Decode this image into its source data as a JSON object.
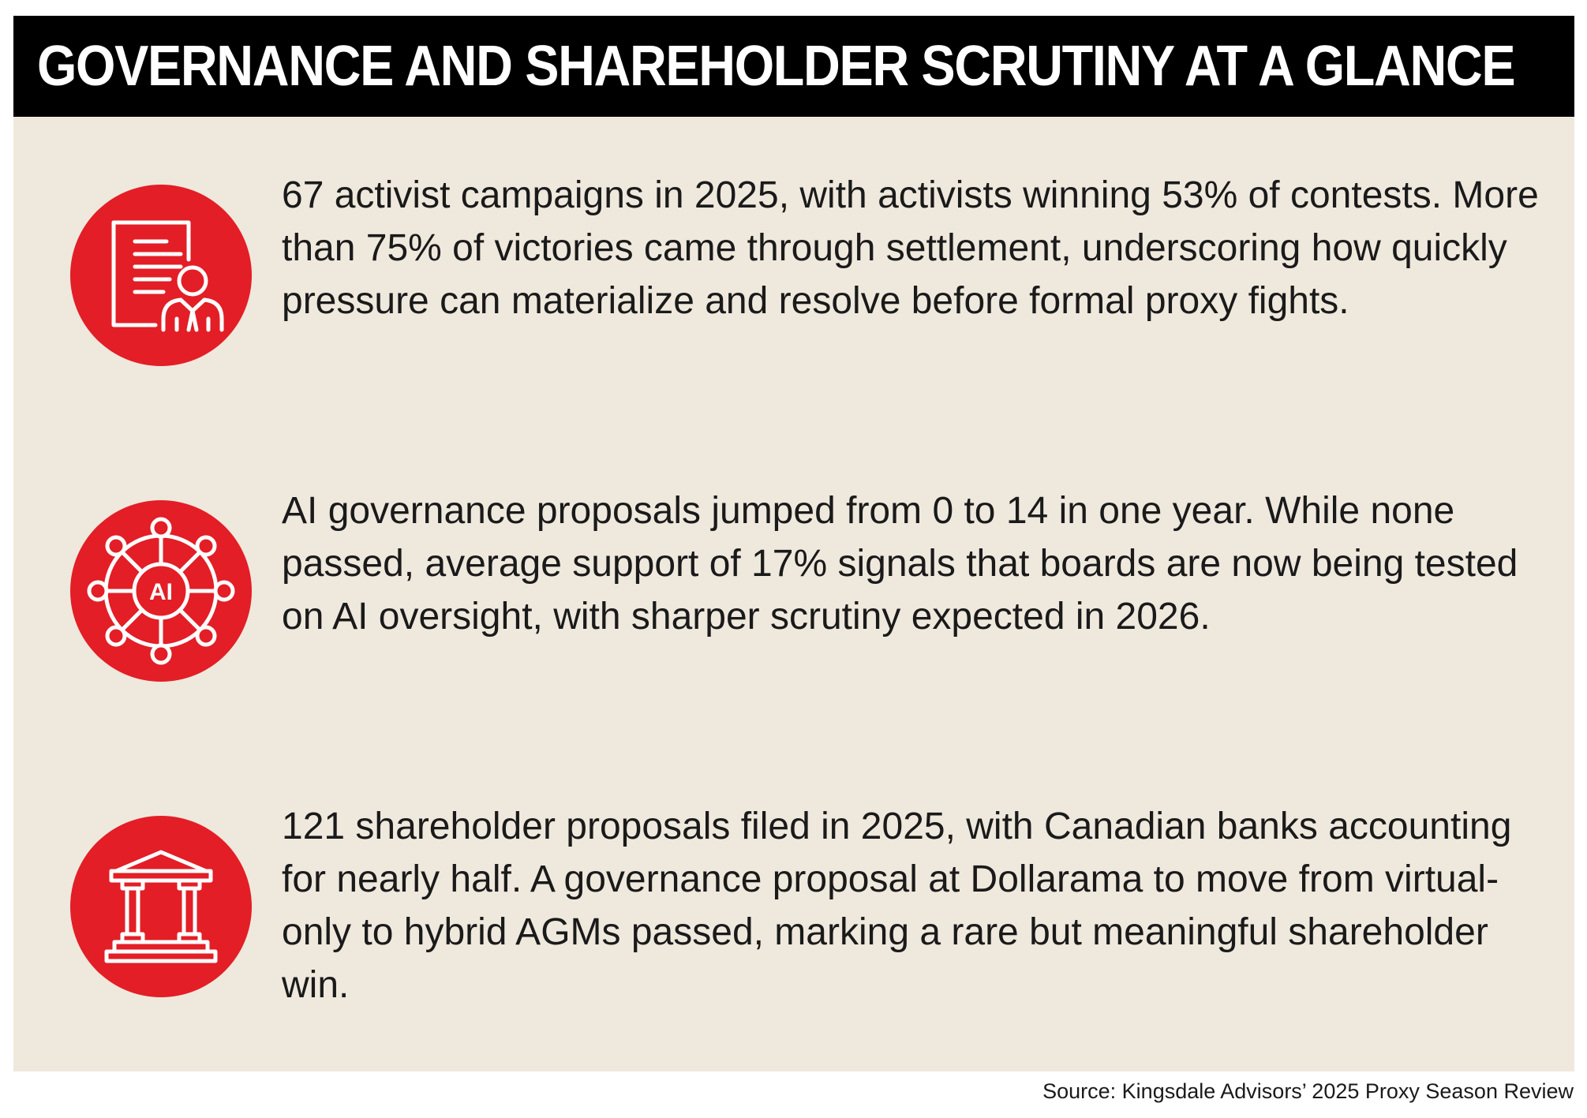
{
  "header": {
    "title": "GOVERNANCE AND SHAREHOLDER SCRUTINY AT A GLANCE"
  },
  "colors": {
    "header_bg": "#000000",
    "panel_bg": "#efe8dd",
    "icon_red": "#e31e26",
    "text": "#1a1a1a"
  },
  "items": [
    {
      "icon": "document-person-icon",
      "text": "67 activist campaigns in 2025, with activists winning 53% of contests. More than 75% of victories came through settlement, underscoring how quickly pressure can materialize and resolve before formal proxy fights."
    },
    {
      "icon": "ai-network-icon",
      "icon_label": "AI",
      "text": "AI governance proposals jumped from 0 to 14 in one year. While none passed, average support of 17% signals that boards are now being tested on AI oversight, with sharper scrutiny expected in 2026."
    },
    {
      "icon": "bank-building-icon",
      "text": "121 shareholder proposals filed in 2025, with Canadian banks accounting for nearly half. A governance proposal at Dollarama to move from virtual-only to hybrid AGMs passed, marking a rare but meaningful shareholder win."
    }
  ],
  "source": "Source: Kingsdale Advisors’ 2025 Proxy Season Review"
}
